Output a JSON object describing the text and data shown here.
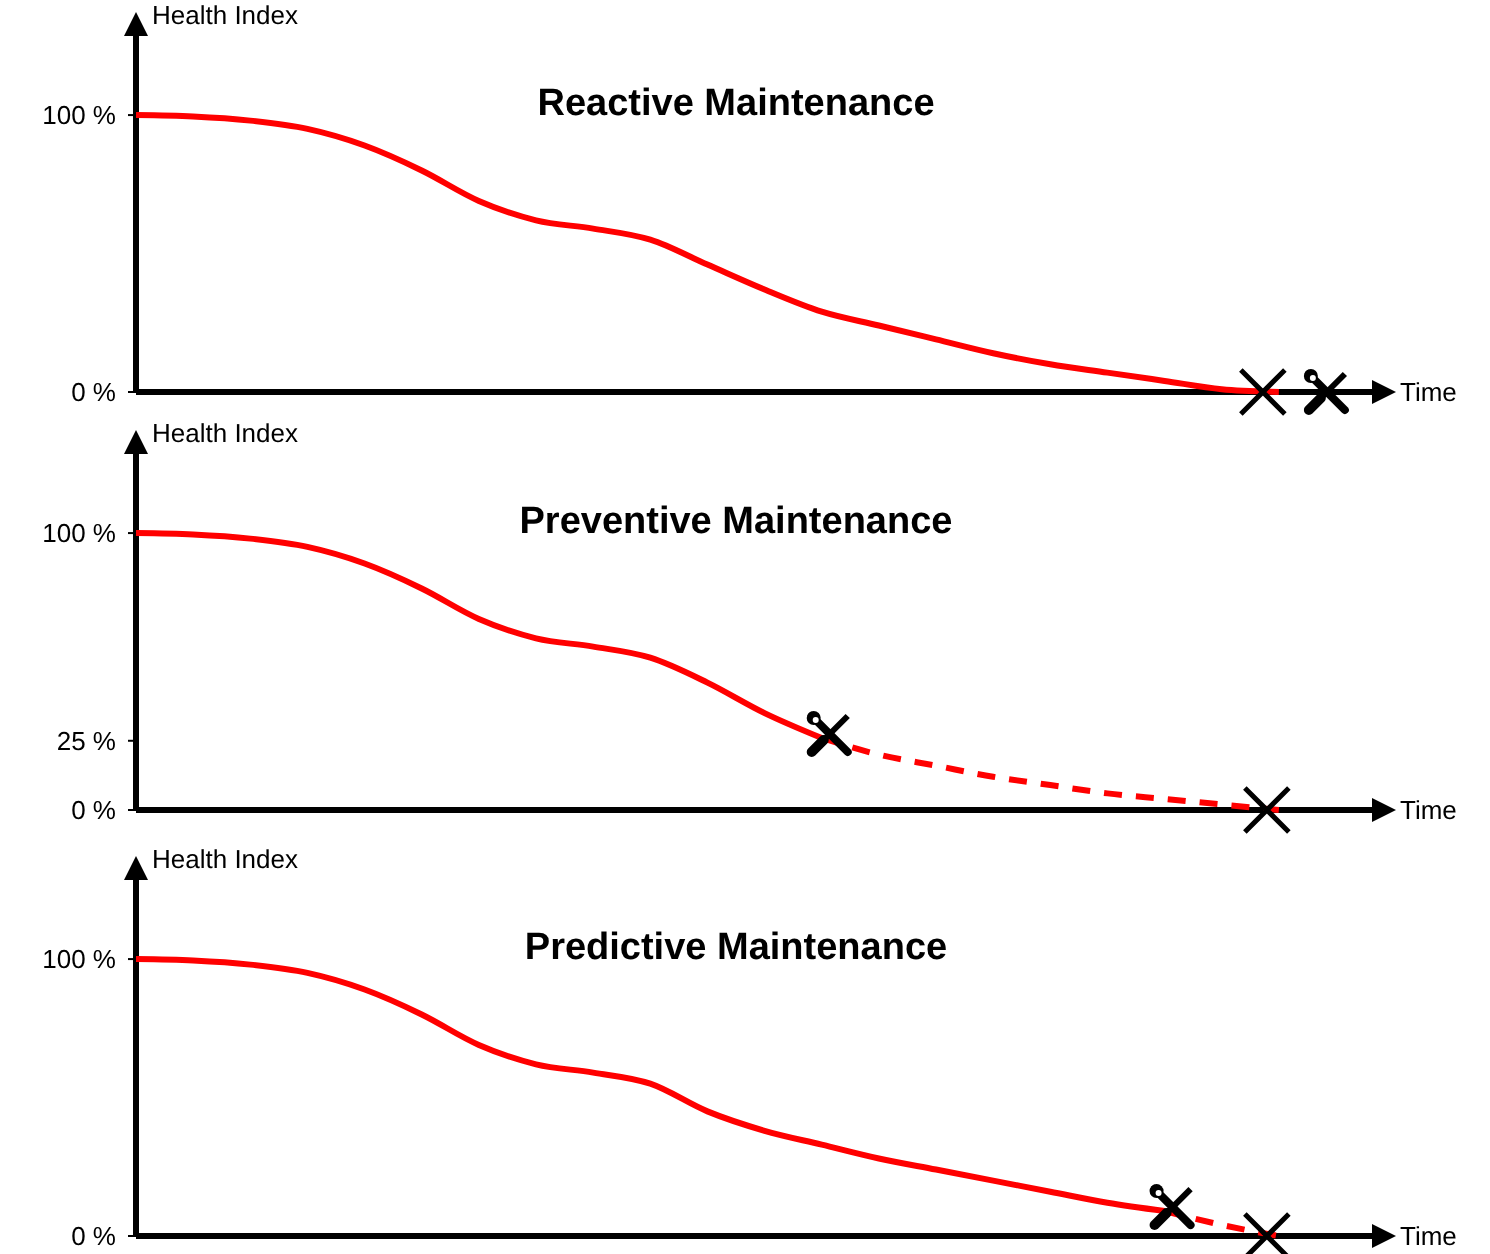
{
  "chart_data": [
    {
      "type": "line",
      "title": "Reactive Maintenance",
      "xlabel": "Time",
      "ylabel": "Health Index",
      "categories": [
        null,
        null,
        null,
        null,
        null,
        null,
        null,
        null,
        null,
        null,
        null,
        null,
        null,
        null,
        null,
        null,
        null,
        null,
        null,
        null,
        null,
        null
      ],
      "ylim": [
        0,
        130
      ],
      "yticks": [
        {
          "value": 0,
          "label": "0 %"
        },
        {
          "value": 100,
          "label": "100 %"
        }
      ],
      "grid": false,
      "marker": "none",
      "tick_labels": "y",
      "series": [
        {
          "color": "#ff0000",
          "line_style": "solid",
          "values": [
            100,
            99.5,
            98,
            95,
            89,
            80,
            69,
            62,
            59,
            55,
            46,
            37,
            29,
            24,
            19,
            14,
            10,
            7,
            4,
            1,
            0,
            null
          ]
        }
      ]
    },
    {
      "type": "line",
      "title": "Preventive Maintenance",
      "xlabel": "Time",
      "ylabel": "Health Index",
      "categories": [
        null,
        null,
        null,
        null,
        null,
        null,
        null,
        null,
        null,
        null,
        null,
        null,
        null,
        null,
        null,
        null,
        null,
        null,
        null,
        null,
        null,
        null
      ],
      "ylim": [
        0,
        130
      ],
      "yticks": [
        {
          "value": 0,
          "label": "0 %"
        },
        {
          "value": 25,
          "label": "25 %"
        },
        {
          "value": 100,
          "label": "100 %"
        }
      ],
      "grid": false,
      "marker": "none",
      "tick_labels": "y",
      "series": [
        {
          "color": "#ff0000",
          "line_style": "solid",
          "values": [
            100,
            99.5,
            98,
            95,
            89,
            80,
            69,
            62,
            59,
            55,
            46,
            35,
            26,
            null,
            null,
            null,
            null,
            null,
            null,
            null,
            null,
            null
          ]
        },
        {
          "color": "#ff0000",
          "line_style": "dashed",
          "values": [
            null,
            null,
            null,
            null,
            null,
            null,
            null,
            null,
            null,
            null,
            null,
            null,
            26,
            20,
            16,
            12,
            9,
            6,
            4,
            2,
            0,
            null
          ]
        }
      ]
    },
    {
      "type": "line",
      "title": "Predictive Maintenance",
      "xlabel": "Time",
      "ylabel": "Health Index",
      "categories": [
        null,
        null,
        null,
        null,
        null,
        null,
        null,
        null,
        null,
        null,
        null,
        null,
        null,
        null,
        null,
        null,
        null,
        null,
        null,
        null,
        null,
        null
      ],
      "ylim": [
        0,
        130
      ],
      "yticks": [
        {
          "value": 0,
          "label": "0 %"
        },
        {
          "value": 100,
          "label": "100 %"
        }
      ],
      "grid": false,
      "marker": "none",
      "tick_labels": "y",
      "series": [
        {
          "color": "#ff0000",
          "line_style": "solid",
          "values": [
            100,
            99.5,
            98,
            95,
            89,
            80,
            69,
            62,
            59,
            55,
            45,
            38,
            33,
            28,
            24,
            20,
            16,
            12,
            9,
            null,
            null,
            null
          ]
        },
        {
          "color": "#ff0000",
          "line_style": "dashed",
          "values": [
            null,
            null,
            null,
            null,
            null,
            null,
            null,
            null,
            null,
            null,
            null,
            null,
            null,
            null,
            null,
            null,
            null,
            null,
            9,
            4,
            0,
            null
          ]
        }
      ]
    }
  ]
}
